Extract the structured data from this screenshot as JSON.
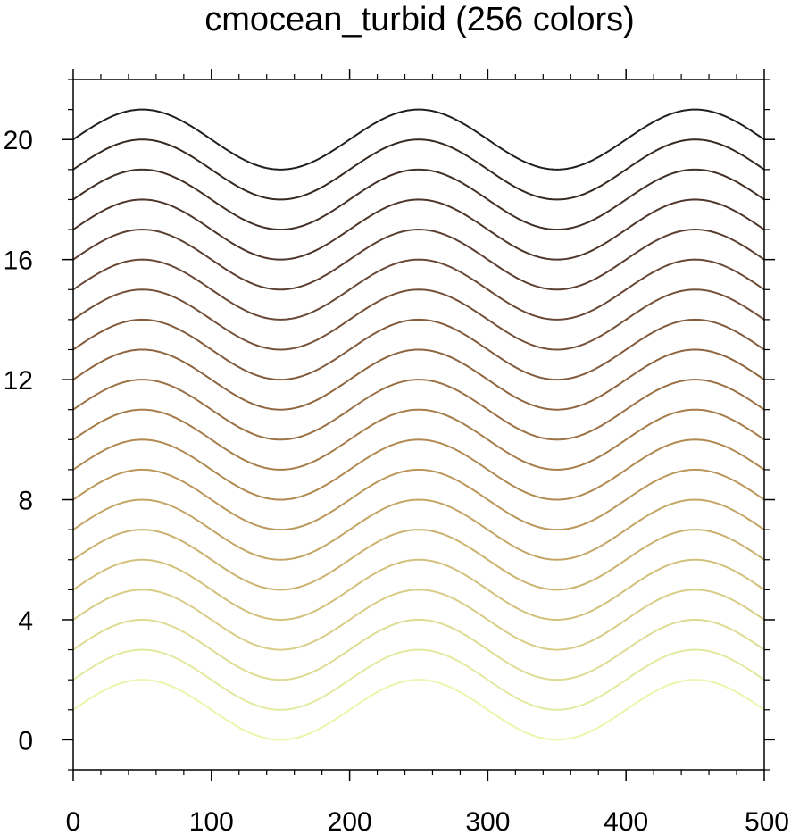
{
  "chart_data": {
    "type": "line",
    "title": "cmocean_turbid (256 colors)",
    "xlabel": "",
    "ylabel": "",
    "xlim": [
      0,
      500
    ],
    "ylim": [
      -1,
      22
    ],
    "x_ticks": [
      0,
      100,
      200,
      300,
      400,
      500
    ],
    "x_tick_labels": [
      "0",
      "100",
      "200",
      "300",
      "400",
      "500"
    ],
    "y_ticks": [
      0,
      4,
      8,
      12,
      16,
      20
    ],
    "y_tick_labels": [
      "0",
      "4",
      "8",
      "12",
      "16",
      "20"
    ],
    "grid": false,
    "legend": "none",
    "curve": {
      "function": "offset + sin(2*pi*x/200)",
      "x_start": 0,
      "x_end": 500,
      "amplitude": 1,
      "period": 200
    },
    "series": [
      {
        "offset": 1,
        "color": "#e9f6ab"
      },
      {
        "offset": 2,
        "color": "#e4e9a0"
      },
      {
        "offset": 3,
        "color": "#dedc93"
      },
      {
        "offset": 4,
        "color": "#d8cd87"
      },
      {
        "offset": 5,
        "color": "#d2c07b"
      },
      {
        "offset": 6,
        "color": "#cbb26f"
      },
      {
        "offset": 7,
        "color": "#c4a565"
      },
      {
        "offset": 8,
        "color": "#bb975b"
      },
      {
        "offset": 9,
        "color": "#b18a52"
      },
      {
        "offset": 10,
        "color": "#a67d4b"
      },
      {
        "offset": 11,
        "color": "#9b7145"
      },
      {
        "offset": 12,
        "color": "#8f6640"
      },
      {
        "offset": 13,
        "color": "#835b3d"
      },
      {
        "offset": 14,
        "color": "#765139"
      },
      {
        "offset": 15,
        "color": "#694835"
      },
      {
        "offset": 16,
        "color": "#5c3f31"
      },
      {
        "offset": 17,
        "color": "#4f372c"
      },
      {
        "offset": 18,
        "color": "#423027"
      },
      {
        "offset": 19,
        "color": "#352a22"
      },
      {
        "offset": 20,
        "color": "#22201d"
      }
    ]
  }
}
